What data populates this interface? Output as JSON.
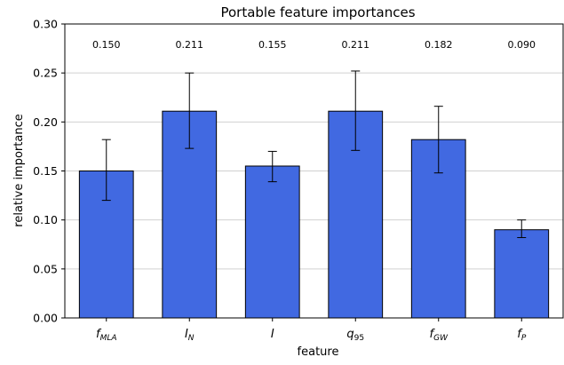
{
  "chart_data": {
    "type": "bar",
    "title": "Portable feature importances",
    "xlabel": "feature",
    "ylabel": "relative importance",
    "categories": [
      {
        "base": "f",
        "sub": "MLA"
      },
      {
        "base": "I",
        "sub": "N"
      },
      {
        "base": "I",
        "sub": ""
      },
      {
        "base": "q",
        "sub": "95"
      },
      {
        "base": "f",
        "sub": "GW"
      },
      {
        "base": "f",
        "sub": "P"
      }
    ],
    "values": [
      0.15,
      0.211,
      0.155,
      0.211,
      0.182,
      0.09
    ],
    "errors": [
      {
        "low": 0.12,
        "high": 0.182
      },
      {
        "low": 0.173,
        "high": 0.25
      },
      {
        "low": 0.139,
        "high": 0.17
      },
      {
        "low": 0.171,
        "high": 0.252
      },
      {
        "low": 0.148,
        "high": 0.216
      },
      {
        "low": 0.082,
        "high": 0.1
      }
    ],
    "value_labels": [
      "0.150",
      "0.211",
      "0.155",
      "0.211",
      "0.182",
      "0.090"
    ],
    "ylim": [
      0,
      0.3
    ],
    "yticks": [
      0.0,
      0.05,
      0.1,
      0.15,
      0.2,
      0.25,
      0.3
    ],
    "ytick_labels": [
      "0.00",
      "0.05",
      "0.10",
      "0.15",
      "0.20",
      "0.25",
      "0.30"
    ],
    "grid": "horizontal",
    "legend": "none",
    "colors": {
      "bar": "#4169e1",
      "bar_edge": "#000000",
      "grid": "#d0d0d0",
      "axis": "#000000"
    }
  }
}
